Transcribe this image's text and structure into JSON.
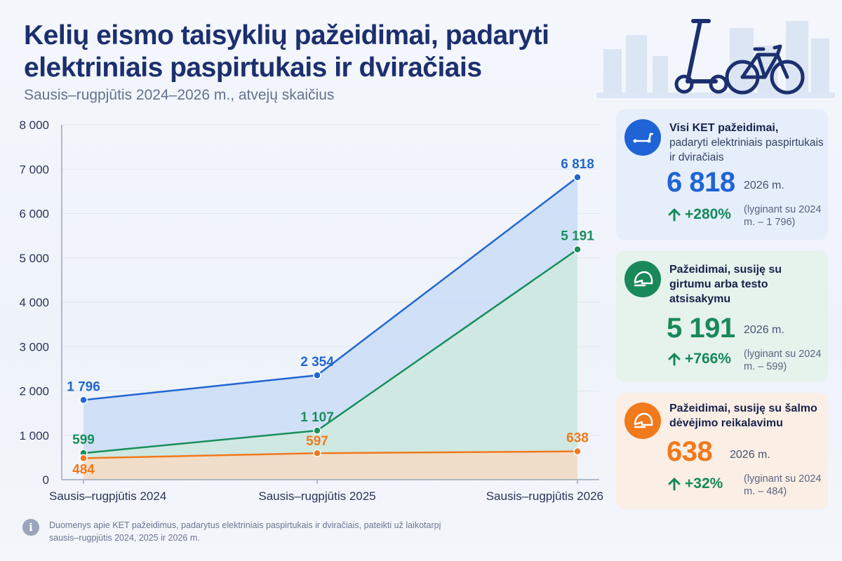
{
  "title": "Kelių eismo taisyklių pažeidimai, padaryti elektriniais paspirtukais ir dviračiais",
  "subtitle": "Sausis–rugpjūtis 2024–2026 m., atvejų skaičius",
  "chart_data": {
    "type": "area",
    "title": "Kelių eismo taisyklių pažeidimai, padaryti elektriniais paspirtukais ir dviračiais",
    "subtitle": "Sausis–rugpjūtis 2024–2026 m., atvejų skaičius",
    "categories": [
      "Sausis–rugpjūtis 2024",
      "Sausis–rugpjūtis 2025",
      "Sausis–rugpjūtis 2026"
    ],
    "ylim": [
      0,
      8000
    ],
    "yticks": [
      0,
      1000,
      2000,
      3000,
      4000,
      5000,
      6000,
      7000,
      8000
    ],
    "ytick_labels": [
      "0",
      "1 000",
      "2 000",
      "3 000",
      "4 000",
      "5 000",
      "6 000",
      "7 000",
      "8 000"
    ],
    "grid": true,
    "series": [
      {
        "values": [
          1796,
          2354,
          6818
        ],
        "labels": [
          "1 796",
          "2 354",
          "6 818"
        ],
        "color": "#2266d0",
        "fill": "#c9dcf6"
      },
      {
        "values": [
          599,
          1107,
          5191
        ],
        "labels": [
          "599",
          "1 107",
          "5 191"
        ],
        "color": "#1a8f5c",
        "fill": "#cfe9de"
      },
      {
        "values": [
          484,
          597,
          638
        ],
        "labels": [
          "484",
          "597",
          "638"
        ],
        "color": "#f07a1c",
        "fill": "#f6dcc6"
      }
    ]
  },
  "cards": {
    "total": {
      "title": "Visi KET pažeidimai,",
      "subtitle": "padaryti elektriniais paspirtukais ir dviračiais",
      "value": "6 818",
      "year": "2026 m.",
      "change": "+280%",
      "compare": "(lyginant su 2024 m. – 1 796)",
      "icon": "scooter-icon",
      "color": "#1f63d6"
    },
    "alcohol": {
      "title": "Pažeidimai, susiję su girtumu arba testo atsisakymu",
      "value": "5 191",
      "year": "2026 m.",
      "change": "+766%",
      "compare": "(lyginant su 2024 m. – 599)",
      "icon": "helmet-icon",
      "color": "#19895a"
    },
    "helmet": {
      "title": "Pažeidimai, susiję su šalmo dėvėjimo reikalavimu",
      "value": "638",
      "year": "2026 m.",
      "change": "+32%",
      "compare": "(lyginant su 2024 m. – 484)",
      "icon": "helmet-icon",
      "color": "#f07a1c"
    }
  },
  "footer": {
    "text": "Duomenys apie KET pažeidimus, padarytus elektriniais paspirtukais ir dviračiais, pateikti už laikotarpį sausis–rugpjūtis 2024, 2025 ir 2026 m."
  }
}
